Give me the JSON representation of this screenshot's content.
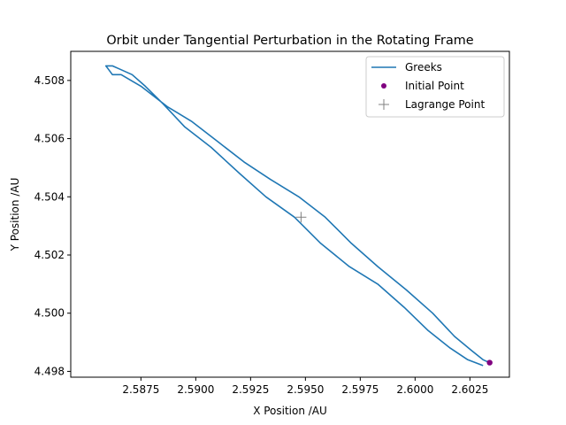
{
  "chart_data": {
    "type": "line",
    "title": "Orbit under Tangential Perturbation in the Rotating Frame",
    "xlabel": "X Position /AU",
    "ylabel": "Y Position /AU",
    "xlim": [
      2.5843,
      2.6043
    ],
    "ylim": [
      4.4978,
      4.509
    ],
    "xticks": [
      2.5875,
      2.59,
      2.5925,
      2.595,
      2.5975,
      2.6,
      2.6025
    ],
    "xtick_labels": [
      "2.5875",
      "2.5900",
      "2.5925",
      "2.5950",
      "2.5975",
      "2.6000",
      "2.6025"
    ],
    "yticks": [
      4.498,
      4.5,
      4.502,
      4.504,
      4.506,
      4.508
    ],
    "ytick_labels": [
      "4.498",
      "4.500",
      "4.502",
      "4.504",
      "4.506",
      "4.508"
    ],
    "grid": false,
    "legend_position": "top-right",
    "series": [
      {
        "name": "Greeks",
        "kind": "line",
        "color": "#1f77b4",
        "x": [
          2.6031,
          2.6024,
          2.6016,
          2.6006,
          2.5995,
          2.5983,
          2.597,
          2.5957,
          2.5945,
          2.5932,
          2.592,
          2.5907,
          2.5895,
          2.5885,
          2.5877,
          2.5871,
          2.5865,
          2.5862,
          2.5859,
          2.586,
          2.5862,
          2.5866,
          2.5875,
          2.5887,
          2.5898,
          2.591,
          2.5922,
          2.5934,
          2.5947,
          2.5959,
          2.5971,
          2.5983,
          2.5996,
          2.6008,
          2.6018,
          2.6026,
          2.6031,
          2.6034
        ],
        "y": [
          4.4982,
          4.4984,
          4.4988,
          4.4994,
          4.5002,
          4.501,
          4.5016,
          4.5024,
          4.5033,
          4.504,
          4.5048,
          4.5057,
          4.5064,
          4.5072,
          4.5078,
          4.5082,
          4.5084,
          4.5085,
          4.5085,
          4.5084,
          4.5082,
          4.5082,
          4.5078,
          4.5071,
          4.5066,
          4.5059,
          4.5052,
          4.5046,
          4.504,
          4.5033,
          4.5024,
          4.5016,
          4.5008,
          4.5,
          4.4992,
          4.4987,
          4.4984,
          4.4983
        ]
      },
      {
        "name": "Initial Point",
        "kind": "point",
        "color": "#800080",
        "x": [
          2.6034
        ],
        "y": [
          4.4983
        ]
      },
      {
        "name": "Lagrange Point",
        "kind": "plus",
        "color": "#808080",
        "x": [
          2.5948
        ],
        "y": [
          4.5033
        ]
      }
    ]
  }
}
